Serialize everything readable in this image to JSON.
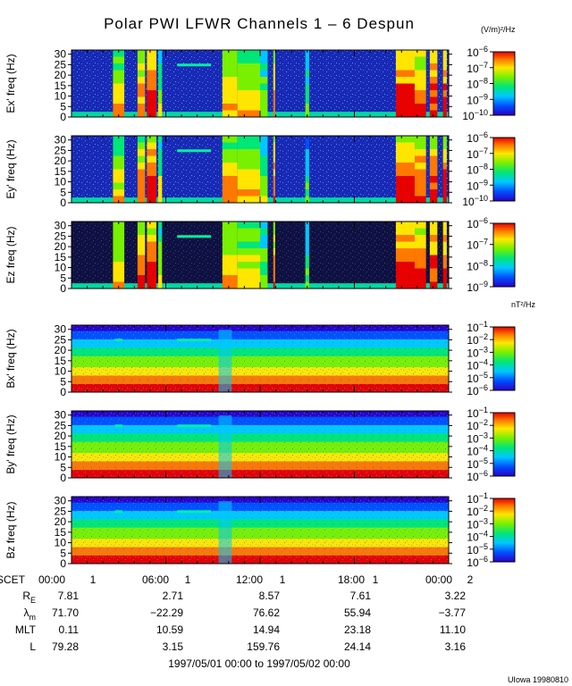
{
  "title": "Polar PWI LFWR Channels 1 – 6 Despun",
  "units_e": "(V/m)²/Hz",
  "units_b": "nT²/Hz",
  "credit": "UIowa 19980810",
  "date_range": "1997/05/01 00:00 to 1997/05/02 00:00",
  "xaxis": {
    "row_label": "SCET",
    "ticks": [
      "00:00",
      "06:00",
      "12:00",
      "18:00",
      "00:00"
    ],
    "day_marks": [
      "1",
      "1",
      "1",
      "1",
      "2"
    ]
  },
  "ephemeris": [
    {
      "label": "R",
      "sub": "E",
      "values": [
        "7.81",
        "2.71",
        "8.57",
        "7.61",
        "3.22"
      ]
    },
    {
      "label": "λ",
      "sub": "m",
      "values": [
        "71.70",
        "−22.29",
        "76.62",
        "55.94",
        "−3.77"
      ]
    },
    {
      "label": "MLT",
      "sub": "",
      "values": [
        "0.11",
        "10.59",
        "14.94",
        "23.18",
        "11.10"
      ]
    },
    {
      "label": "L",
      "sub": "",
      "values": [
        "79.28",
        "3.15",
        "159.76",
        "24.14",
        "3.16"
      ]
    }
  ],
  "chart_data": [
    {
      "type": "heatmap",
      "ylabel": "Ex' freq (Hz)",
      "yticks": [
        0,
        5,
        10,
        15,
        20,
        25,
        30
      ],
      "ylim": [
        0,
        32
      ],
      "xlim": [
        "1997/05/01 00:00",
        "1997/05/02 00:00"
      ],
      "colorscale": "rainbow",
      "units": "(V/m)²/Hz",
      "colorbar_min_exp": -10,
      "colorbar_max_exp": -6,
      "colorbar_ticks": [
        -6,
        -7,
        -8,
        -9,
        -10
      ]
    },
    {
      "type": "heatmap",
      "ylabel": "Ey' freq (Hz)",
      "yticks": [
        0,
        5,
        10,
        15,
        20,
        25,
        30
      ],
      "ylim": [
        0,
        32
      ],
      "xlim": [
        "1997/05/01 00:00",
        "1997/05/02 00:00"
      ],
      "colorscale": "rainbow",
      "units": "(V/m)²/Hz",
      "colorbar_min_exp": -10,
      "colorbar_max_exp": -6,
      "colorbar_ticks": [
        -6,
        -7,
        -8,
        -9,
        -10
      ]
    },
    {
      "type": "heatmap",
      "ylabel": "Ez freq (Hz)",
      "yticks": [
        0,
        5,
        10,
        15,
        20,
        25,
        30
      ],
      "ylim": [
        0,
        32
      ],
      "xlim": [
        "1997/05/01 00:00",
        "1997/05/02 00:00"
      ],
      "colorscale": "rainbow",
      "units": "(V/m)²/Hz",
      "colorbar_min_exp": -9,
      "colorbar_max_exp": -6,
      "colorbar_ticks": [
        -6,
        -7,
        -8,
        -9
      ]
    },
    {
      "type": "heatmap",
      "ylabel": "Bx' freq (Hz)",
      "yticks": [
        0,
        5,
        10,
        15,
        20,
        25,
        30
      ],
      "ylim": [
        0,
        32
      ],
      "xlim": [
        "1997/05/01 00:00",
        "1997/05/02 00:00"
      ],
      "colorscale": "rainbow",
      "units": "nT²/Hz",
      "colorbar_min_exp": -6,
      "colorbar_max_exp": -1,
      "colorbar_ticks": [
        -1,
        -2,
        -3,
        -4,
        -5,
        -6
      ]
    },
    {
      "type": "heatmap",
      "ylabel": "By' freq (Hz)",
      "yticks": [
        0,
        5,
        10,
        15,
        20,
        25,
        30
      ],
      "ylim": [
        0,
        32
      ],
      "xlim": [
        "1997/05/01 00:00",
        "1997/05/02 00:00"
      ],
      "colorscale": "rainbow",
      "units": "nT²/Hz",
      "colorbar_min_exp": -6,
      "colorbar_max_exp": -1,
      "colorbar_ticks": [
        -1,
        -2,
        -3,
        -4,
        -5,
        -6
      ]
    },
    {
      "type": "heatmap",
      "ylabel": "Bz freq (Hz)",
      "yticks": [
        0,
        5,
        10,
        15,
        20,
        25,
        30
      ],
      "ylim": [
        0,
        32
      ],
      "xlim": [
        "1997/05/01 00:00",
        "1997/05/02 00:00"
      ],
      "colorscale": "rainbow",
      "units": "nT²/Hz",
      "colorbar_min_exp": -6,
      "colorbar_max_exp": -1,
      "colorbar_ticks": [
        -1,
        -2,
        -3,
        -4,
        -5,
        -6
      ]
    }
  ]
}
